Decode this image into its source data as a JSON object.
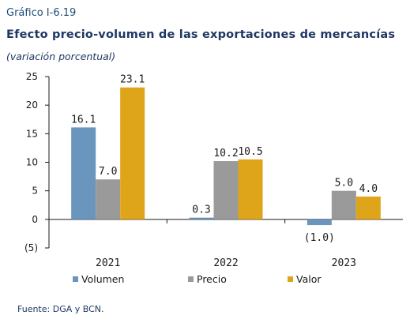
{
  "header": {
    "chart_label": "Gráfico I-6.19",
    "title": "Efecto precio-volumen de las exportaciones de mercancías",
    "subtitle": "(variación porcentual)"
  },
  "footer": {
    "source": "Fuente: DGA y BCN."
  },
  "colors": {
    "Volumen": "#6a95bd",
    "Precio": "#9a9a9a",
    "Valor": "#dfa51a"
  },
  "chart_data": {
    "type": "bar",
    "categories": [
      "2021",
      "2022",
      "2023"
    ],
    "series": [
      {
        "name": "Volumen",
        "values": [
          16.1,
          0.3,
          -1.0
        ],
        "labels": [
          "16.1",
          "0.3",
          "(1.0)"
        ]
      },
      {
        "name": "Precio",
        "values": [
          7.0,
          10.2,
          5.0
        ],
        "labels": [
          "7.0",
          "10.2",
          "5.0"
        ]
      },
      {
        "name": "Valor",
        "values": [
          23.1,
          10.5,
          4.0
        ],
        "labels": [
          "23.1",
          "10.5",
          "4.0"
        ]
      }
    ],
    "ylim": [
      -5,
      25
    ],
    "yticks": [
      -5,
      0,
      5,
      10,
      15,
      20,
      25
    ],
    "ytick_labels": [
      "(5)",
      "0",
      "5",
      "10",
      "15",
      "20",
      "25"
    ],
    "grid": false,
    "legend": "bottom"
  }
}
